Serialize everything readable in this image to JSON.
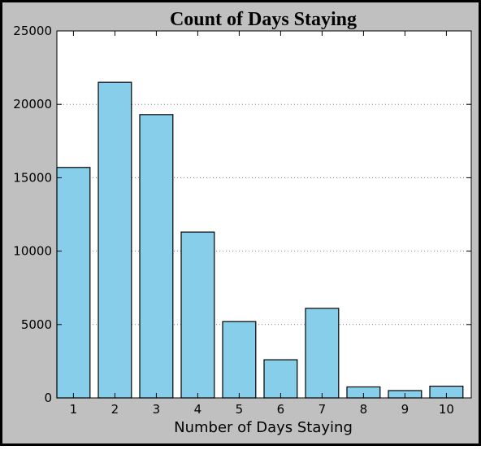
{
  "chart_data": {
    "type": "bar",
    "title": "Count of Days Staying",
    "xlabel": "Number of Days Staying",
    "ylabel": "",
    "categories": [
      "1",
      "2",
      "3",
      "4",
      "5",
      "6",
      "7",
      "8",
      "9",
      "10"
    ],
    "values": [
      15700,
      21500,
      19300,
      11300,
      5200,
      2600,
      6100,
      750,
      500,
      800
    ],
    "ylim": [
      0,
      25000
    ],
    "yticks": [
      "0",
      "5000",
      "10000",
      "15000",
      "20000",
      "25000"
    ],
    "grid": "horizontal-dotted",
    "legend": "none",
    "colors": {
      "bar_fill": "#87ceeb",
      "bar_stroke": "#000000",
      "frame_background": "#c0c0c0",
      "plot_background": "#ffffff",
      "grid": "#808080"
    }
  }
}
